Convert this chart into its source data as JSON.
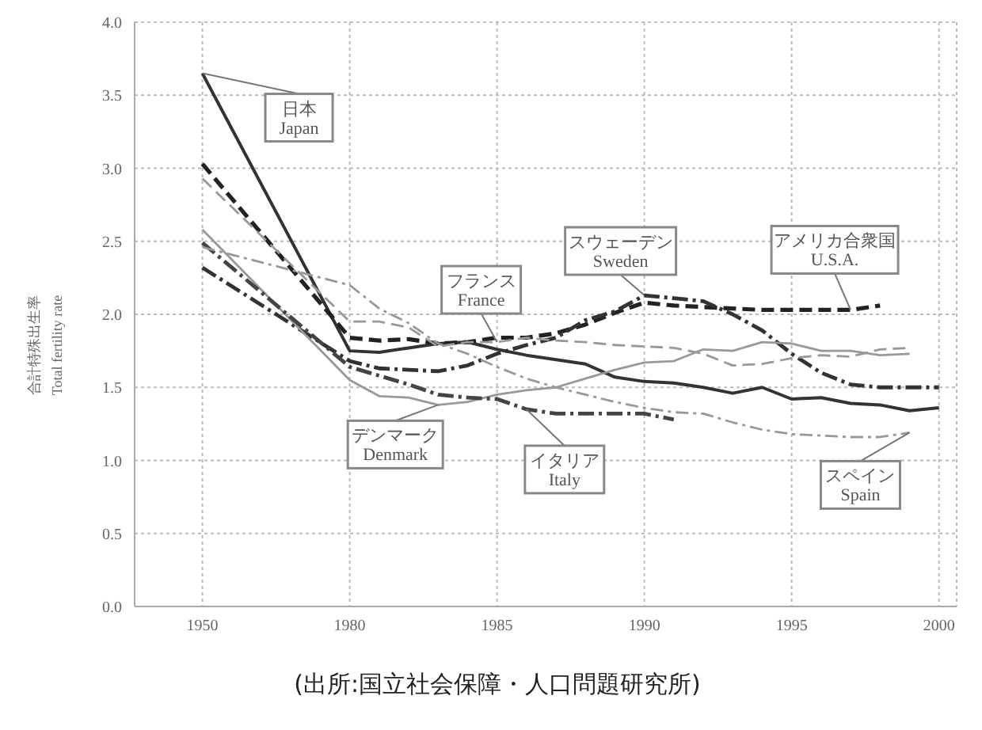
{
  "chart_data": {
    "type": "line",
    "ylabel": "合計特殊出生率\nTotal fertility rate",
    "annotations": [
      "(出所:国立社会保障・人口問題研究所)"
    ],
    "categories": [
      "1950",
      null,
      null,
      null,
      null,
      "1980",
      null,
      null,
      null,
      null,
      "1985",
      null,
      null,
      null,
      null,
      "1990",
      null,
      null,
      null,
      null,
      "1995",
      null,
      null,
      null,
      null,
      "2000"
    ],
    "series": [
      {
        "name": "日本\nJapan",
        "color": "#333333",
        "line_style": "solid",
        "values": [
          3.65,
          null,
          null,
          null,
          null,
          1.75,
          1.74,
          1.77,
          1.8,
          1.81,
          1.76,
          1.72,
          1.69,
          1.66,
          1.57,
          1.54,
          1.53,
          1.5,
          1.46,
          1.5,
          1.42,
          1.43,
          1.39,
          1.38,
          1.34,
          1.36
        ]
      },
      {
        "name": "アメリカ合衆国\nU.S.A.",
        "color": "#222222",
        "line_style": "dashed",
        "values": [
          3.03,
          null,
          null,
          null,
          null,
          1.84,
          1.82,
          1.83,
          1.8,
          1.81,
          1.84,
          1.84,
          1.87,
          1.93,
          2.01,
          2.08,
          2.06,
          2.05,
          2.04,
          2.03,
          2.03,
          2.03,
          2.03,
          2.06,
          null,
          null
        ]
      },
      {
        "name": "スウェーデン\nSweden",
        "color": "#333333",
        "line_style": "dashed",
        "values": [
          2.32,
          null,
          null,
          null,
          null,
          1.68,
          1.63,
          1.62,
          1.61,
          1.65,
          1.73,
          1.79,
          1.84,
          1.96,
          2.02,
          2.13,
          2.11,
          2.09,
          2.0,
          1.89,
          1.73,
          1.6,
          1.52,
          1.5,
          1.5,
          1.5
        ]
      },
      {
        "name": "フランス\nFrance",
        "color": "#999999",
        "line_style": "dashed",
        "values": [
          2.93,
          null,
          null,
          null,
          null,
          1.95,
          1.95,
          1.91,
          1.78,
          1.81,
          1.81,
          1.84,
          1.82,
          1.81,
          1.79,
          1.78,
          1.77,
          1.73,
          1.65,
          1.66,
          1.7,
          1.72,
          1.71,
          1.76,
          1.77,
          null
        ]
      },
      {
        "name": "デンマーク\nDenmark",
        "color": "#999999",
        "line_style": "solid",
        "values": [
          2.58,
          null,
          null,
          null,
          null,
          1.55,
          1.44,
          1.43,
          1.38,
          1.4,
          1.45,
          1.48,
          1.5,
          1.56,
          1.62,
          1.67,
          1.68,
          1.76,
          1.75,
          1.81,
          1.8,
          1.75,
          1.75,
          1.72,
          1.73,
          null
        ]
      },
      {
        "name": "イタリア\nItaly",
        "color": "#444444",
        "line_style": "dashed",
        "values": [
          2.49,
          null,
          null,
          null,
          null,
          1.64,
          1.58,
          1.52,
          1.45,
          1.43,
          1.42,
          1.35,
          1.32,
          1.32,
          1.32,
          1.32,
          1.28,
          null,
          null,
          null,
          null,
          null,
          null,
          null,
          null,
          null
        ]
      },
      {
        "name": "スペイン\nSpain",
        "color": "#999999",
        "line_style": "dashed",
        "values": [
          2.46,
          null,
          null,
          null,
          null,
          2.2,
          2.04,
          1.94,
          1.8,
          1.73,
          1.64,
          1.56,
          1.5,
          1.45,
          1.4,
          1.36,
          1.33,
          1.32,
          1.26,
          1.21,
          1.18,
          1.17,
          1.16,
          1.16,
          1.19,
          null
        ]
      }
    ],
    "ylim": [
      0,
      4
    ],
    "yticks": [
      {
        "value": 0,
        "label": "0.0"
      },
      {
        "value": 0.5,
        "label": "0.5"
      },
      {
        "value": 1,
        "label": "1.0"
      },
      {
        "value": 1.5,
        "label": "1.5"
      },
      {
        "value": 2,
        "label": "2.0"
      },
      {
        "value": 2.5,
        "label": "2.5"
      },
      {
        "value": 3,
        "label": "3.0"
      },
      {
        "value": 3.5,
        "label": "3.5"
      },
      {
        "value": 4,
        "label": "4.0"
      }
    ],
    "grid": true,
    "marker": "none"
  }
}
